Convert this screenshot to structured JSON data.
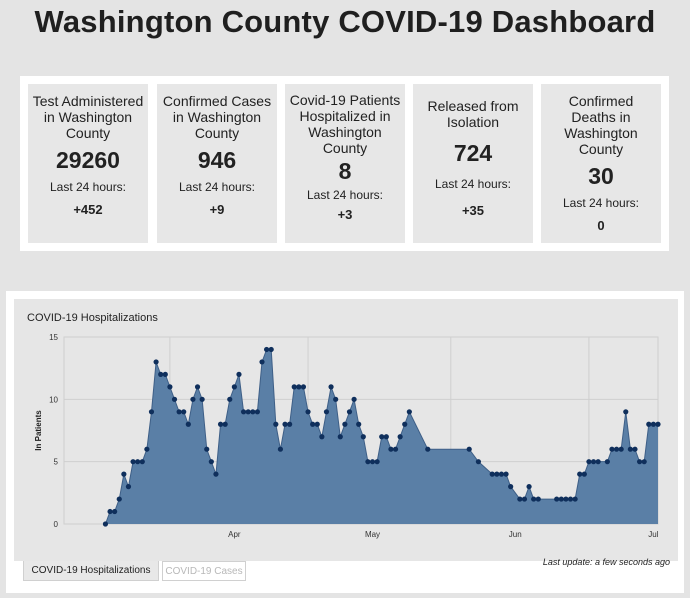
{
  "title": "Washington County COVID-19 Dashboard",
  "stats": [
    {
      "label": "Test Administered in Washington County",
      "value": "29260",
      "sub": "Last 24 hours:",
      "delta": "+452"
    },
    {
      "label": "Confirmed Cases in Washington County",
      "value": "946",
      "sub": "Last 24 hours:",
      "delta": "+9"
    },
    {
      "label": "Covid-19 Patients Hospitalized in Washington County",
      "value": "8",
      "sub": "Last 24 hours:",
      "delta": "+3"
    },
    {
      "label": "Released from Isolation",
      "value": "724",
      "sub": "Last 24 hours:",
      "delta": "+35"
    },
    {
      "label": "Confirmed Deaths in Washington County",
      "value": "30",
      "sub": "Last 24 hours:",
      "delta": "0"
    }
  ],
  "chart": {
    "title": "COVID-19 Hospitalizations",
    "update_text": "Last update: a few seconds ago"
  },
  "tabs": {
    "active": "COVID-19 Hospitalizations",
    "inactive": "COVID-19 Cases"
  },
  "colors": {
    "area_fill": "#5a7fa6",
    "line": "#3e5f87",
    "marker": "#0f2f5c"
  },
  "chart_data": {
    "type": "area",
    "title": "COVID-19 Hospitalizations",
    "xlabel": "",
    "ylabel": "In Patients",
    "x_tick_labels": [
      "Apr",
      "May",
      "Jun",
      "Jul"
    ],
    "ylim": [
      0,
      15
    ],
    "yticks": [
      0,
      5,
      10,
      15
    ],
    "grid": true,
    "x": [
      "2020-03-18",
      "2020-03-19",
      "2020-03-20",
      "2020-03-21",
      "2020-03-22",
      "2020-03-23",
      "2020-03-24",
      "2020-03-25",
      "2020-03-26",
      "2020-03-27",
      "2020-03-28",
      "2020-03-29",
      "2020-03-30",
      "2020-03-31",
      "2020-04-01",
      "2020-04-02",
      "2020-04-03",
      "2020-04-04",
      "2020-04-05",
      "2020-04-06",
      "2020-04-07",
      "2020-04-08",
      "2020-04-09",
      "2020-04-10",
      "2020-04-11",
      "2020-04-12",
      "2020-04-13",
      "2020-04-14",
      "2020-04-15",
      "2020-04-16",
      "2020-04-17",
      "2020-04-18",
      "2020-04-19",
      "2020-04-20",
      "2020-04-21",
      "2020-04-22",
      "2020-04-23",
      "2020-04-24",
      "2020-04-25",
      "2020-04-26",
      "2020-04-27",
      "2020-04-28",
      "2020-04-29",
      "2020-04-30",
      "2020-05-01",
      "2020-05-02",
      "2020-05-03",
      "2020-05-04",
      "2020-05-05",
      "2020-05-06",
      "2020-05-07",
      "2020-05-08",
      "2020-05-09",
      "2020-05-10",
      "2020-05-11",
      "2020-05-12",
      "2020-05-13",
      "2020-05-14",
      "2020-05-15",
      "2020-05-16",
      "2020-05-17",
      "2020-05-18",
      "2020-05-19",
      "2020-05-20",
      "2020-05-21",
      "2020-05-22",
      "2020-05-23",
      "2020-05-27",
      "2020-06-05",
      "2020-06-07",
      "2020-06-10",
      "2020-06-11",
      "2020-06-12",
      "2020-06-13",
      "2020-06-14",
      "2020-06-16",
      "2020-06-17",
      "2020-06-18",
      "2020-06-19",
      "2020-06-20",
      "2020-06-24",
      "2020-06-25",
      "2020-06-26",
      "2020-06-27",
      "2020-06-28",
      "2020-06-29",
      "2020-06-30",
      "2020-07-01",
      "2020-07-02",
      "2020-07-03",
      "2020-07-05",
      "2020-07-06",
      "2020-07-07",
      "2020-07-08",
      "2020-07-09",
      "2020-07-10",
      "2020-07-11",
      "2020-07-12",
      "2020-07-13",
      "2020-07-14",
      "2020-07-15",
      "2020-07-16"
    ],
    "values": [
      0,
      1,
      1,
      2,
      4,
      3,
      5,
      5,
      5,
      6,
      9,
      13,
      12,
      12,
      11,
      10,
      9,
      9,
      8,
      10,
      11,
      10,
      6,
      5,
      4,
      8,
      8,
      10,
      11,
      12,
      9,
      9,
      9,
      9,
      13,
      14,
      14,
      8,
      6,
      8,
      8,
      11,
      11,
      11,
      9,
      8,
      8,
      7,
      9,
      11,
      10,
      7,
      8,
      9,
      10,
      8,
      7,
      5,
      5,
      5,
      7,
      7,
      6,
      6,
      7,
      8,
      9,
      6,
      6,
      5,
      4,
      4,
      4,
      4,
      3,
      2,
      2,
      3,
      2,
      2,
      2,
      2,
      2,
      2,
      2,
      4,
      4,
      5,
      5,
      5,
      5,
      6,
      6,
      6,
      9,
      6,
      6,
      5,
      5,
      8,
      8,
      8
    ]
  }
}
